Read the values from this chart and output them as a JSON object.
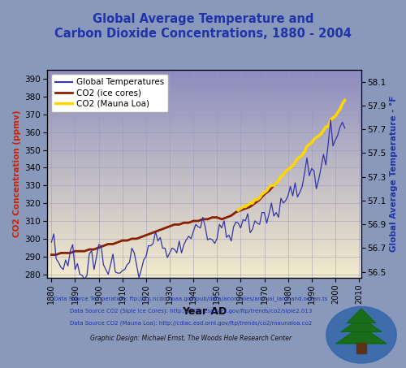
{
  "title": "Global Average Temperature and\nCarbon Dioxide Concentrations, 1880 - 2004",
  "title_color": "#2233AA",
  "xlabel": "Year AD",
  "ylabel_left": "CO2 Concentration (ppmv)",
  "ylabel_right": "Global Average Temperature - °F",
  "ylabel_left_color": "#CC2200",
  "ylabel_right_color": "#2233AA",
  "xlim": [
    1878,
    2011
  ],
  "ylim_left": [
    278,
    395
  ],
  "ylim_right": [
    56.45,
    58.2
  ],
  "xticks": [
    1880,
    1890,
    1900,
    1910,
    1920,
    1930,
    1940,
    1950,
    1960,
    1970,
    1980,
    1990,
    2000,
    2010
  ],
  "yticks_left": [
    280,
    290,
    300,
    310,
    320,
    330,
    340,
    350,
    360,
    370,
    380,
    390
  ],
  "yticks_right": [
    56.5,
    56.7,
    56.9,
    57.1,
    57.3,
    57.5,
    57.7,
    57.9,
    58.1
  ],
  "temp_color": "#3333AA",
  "co2_ice_color": "#8B2000",
  "co2_mauna_color": "#FFD700",
  "footer_color": "#2233AA",
  "footer_lines": [
    "Data Source Temperature: ftp://ftp.ncdc.noaa.gov/pub/data/anomalies/annual_land.and.ocean.ts",
    "Data Source CO2 (Siple Ice Cores): http://cdiac.esd.ornl.gov/ftp/trends/co2/siple2.013",
    "Data Source CO2 (Mauna Loa): http://cdiac.esd.ornl.gov/ftp/trends/co2/maunaloa.co2"
  ],
  "footer_graphic": "Graphic Design: Michael Ernst, The Woods Hole Research Center",
  "temp_years": [
    1880,
    1881,
    1882,
    1883,
    1884,
    1885,
    1886,
    1887,
    1888,
    1889,
    1890,
    1891,
    1892,
    1893,
    1894,
    1895,
    1896,
    1897,
    1898,
    1899,
    1900,
    1901,
    1902,
    1903,
    1904,
    1905,
    1906,
    1907,
    1908,
    1909,
    1910,
    1911,
    1912,
    1913,
    1914,
    1915,
    1916,
    1917,
    1918,
    1919,
    1920,
    1921,
    1922,
    1923,
    1924,
    1925,
    1926,
    1927,
    1928,
    1929,
    1930,
    1931,
    1932,
    1933,
    1934,
    1935,
    1936,
    1937,
    1938,
    1939,
    1940,
    1941,
    1942,
    1943,
    1944,
    1945,
    1946,
    1947,
    1948,
    1949,
    1950,
    1951,
    1952,
    1953,
    1954,
    1955,
    1956,
    1957,
    1958,
    1959,
    1960,
    1961,
    1962,
    1963,
    1964,
    1965,
    1966,
    1967,
    1968,
    1969,
    1970,
    1971,
    1972,
    1973,
    1974,
    1975,
    1976,
    1977,
    1978,
    1979,
    1980,
    1981,
    1982,
    1983,
    1984,
    1985,
    1986,
    1987,
    1988,
    1989,
    1990,
    1991,
    1992,
    1993,
    1994,
    1995,
    1996,
    1997,
    1998,
    1999,
    2000,
    2001,
    2002,
    2003,
    2004
  ],
  "temp_values": [
    56.75,
    56.82,
    56.61,
    56.58,
    56.54,
    56.52,
    56.6,
    56.55,
    56.68,
    56.73,
    56.52,
    56.57,
    56.48,
    56.47,
    56.44,
    56.47,
    56.65,
    56.68,
    56.52,
    56.62,
    56.73,
    56.72,
    56.56,
    56.52,
    56.48,
    56.56,
    56.65,
    56.5,
    56.49,
    56.49,
    56.51,
    56.52,
    56.56,
    56.58,
    56.7,
    56.66,
    56.56,
    56.45,
    56.52,
    56.6,
    56.63,
    56.72,
    56.72,
    56.74,
    56.84,
    56.76,
    56.79,
    56.7,
    56.7,
    56.62,
    56.66,
    56.7,
    56.69,
    56.66,
    56.76,
    56.66,
    56.73,
    56.77,
    56.8,
    56.78,
    56.84,
    56.9,
    56.88,
    56.87,
    56.96,
    56.88,
    56.77,
    56.78,
    56.77,
    56.74,
    56.78,
    56.9,
    56.87,
    56.93,
    56.79,
    56.81,
    56.76,
    56.88,
    56.92,
    56.91,
    56.87,
    56.94,
    56.93,
    56.99,
    56.83,
    56.86,
    56.93,
    56.91,
    56.9,
    57.0,
    57.0,
    56.91,
    56.99,
    57.08,
    56.97,
    57.0,
    56.96,
    57.12,
    57.08,
    57.1,
    57.14,
    57.22,
    57.14,
    57.25,
    57.13,
    57.17,
    57.22,
    57.33,
    57.46,
    57.31,
    57.37,
    57.35,
    57.2,
    57.28,
    57.38,
    57.49,
    57.4,
    57.58,
    57.78,
    57.56,
    57.61,
    57.65,
    57.72,
    57.76,
    57.71
  ],
  "ice_years": [
    1880,
    1882,
    1884,
    1886,
    1888,
    1890,
    1892,
    1894,
    1896,
    1898,
    1900,
    1902,
    1904,
    1906,
    1908,
    1910,
    1912,
    1914,
    1916,
    1918,
    1920,
    1922,
    1924,
    1926,
    1928,
    1930,
    1932,
    1934,
    1936,
    1938,
    1940,
    1942,
    1944,
    1946,
    1948,
    1950,
    1952,
    1954,
    1956,
    1958,
    1960,
    1962,
    1964,
    1966,
    1968,
    1970,
    1972,
    1974,
    1975
  ],
  "ice_values": [
    291,
    291,
    292,
    292,
    292,
    293,
    293,
    293,
    294,
    294,
    295,
    296,
    297,
    297,
    298,
    299,
    299,
    300,
    300,
    301,
    302,
    303,
    304,
    305,
    306,
    307,
    308,
    308,
    309,
    309,
    310,
    310,
    311,
    311,
    312,
    312,
    311,
    312,
    313,
    315,
    316,
    317,
    318,
    320,
    322,
    325,
    327,
    330,
    331
  ],
  "mauna_years": [
    1959,
    1960,
    1961,
    1962,
    1963,
    1964,
    1965,
    1966,
    1967,
    1968,
    1969,
    1970,
    1971,
    1972,
    1973,
    1974,
    1975,
    1976,
    1977,
    1978,
    1979,
    1980,
    1981,
    1982,
    1983,
    1984,
    1985,
    1986,
    1987,
    1988,
    1989,
    1990,
    1991,
    1992,
    1993,
    1994,
    1995,
    1996,
    1997,
    1998,
    1999,
    2000,
    2001,
    2002,
    2003,
    2004
  ],
  "mauna_values": [
    316,
    317,
    318,
    318,
    319,
    320,
    320,
    322,
    322,
    323,
    325,
    326,
    327,
    329,
    330,
    330,
    331,
    333,
    335,
    336,
    338,
    339,
    340,
    341,
    343,
    345,
    346,
    347,
    349,
    352,
    353,
    354,
    356,
    357,
    358,
    359,
    361,
    363,
    363,
    367,
    368,
    369,
    371,
    373,
    376,
    378
  ]
}
